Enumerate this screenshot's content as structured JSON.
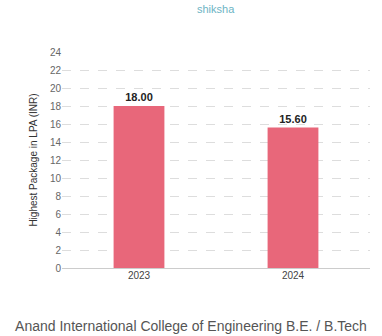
{
  "chart_data": {
    "type": "bar",
    "title": "Anand International College of Engineering B.E. / B.Tech",
    "annotations": [
      "shiksha"
    ],
    "y_label": "Highest Package in LPA (INR)",
    "categories": [
      "2023",
      "2024"
    ],
    "values": [
      18.0,
      15.6
    ],
    "value_labels": [
      "18.00",
      "15.60"
    ],
    "data_labels": true,
    "color": "#e8677a",
    "ylim": [
      0,
      24
    ],
    "yticks": [
      0,
      2,
      4,
      6,
      8,
      10,
      12,
      14,
      16,
      18,
      20,
      22,
      24
    ],
    "grid": true
  }
}
